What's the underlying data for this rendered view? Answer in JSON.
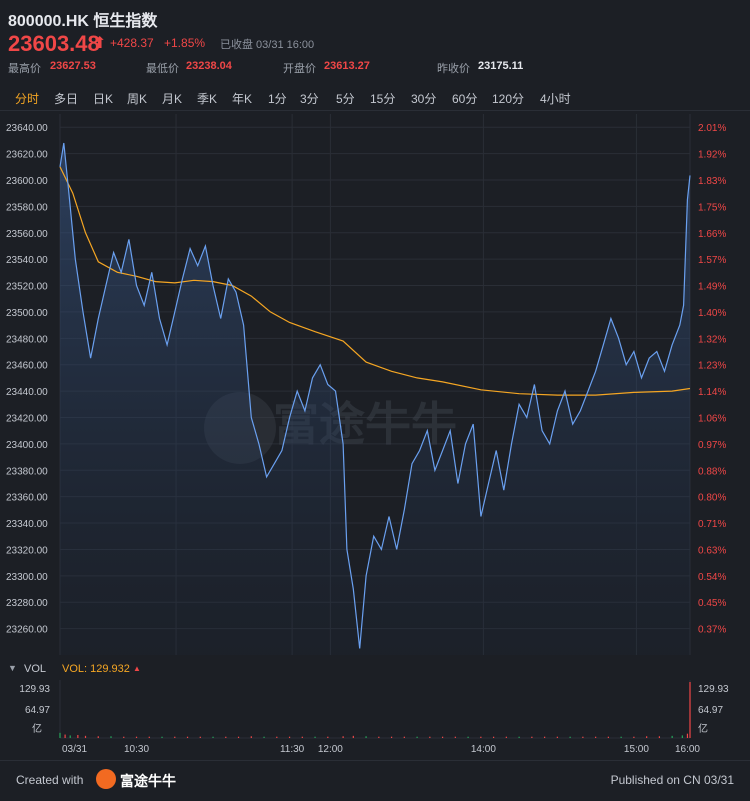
{
  "header": {
    "title": "800000.HK 恒生指数",
    "price": "23603.48",
    "price_arrow": "⬆",
    "change": "+428.37",
    "change_pct": "+1.85%",
    "status": "已收盘 03/31 16:00",
    "stats": [
      {
        "label": "最高价",
        "value": "23627.53",
        "color": "#f04747"
      },
      {
        "label": "最低价",
        "value": "23238.04",
        "color": "#f04747"
      },
      {
        "label": "开盘价",
        "value": "23613.27",
        "color": "#f04747"
      },
      {
        "label": "昨收价",
        "value": "23175.11",
        "color": "#e7e9ee"
      }
    ]
  },
  "tabs": [
    {
      "label": "分时",
      "active": true
    },
    {
      "label": "多日"
    },
    {
      "label": "日K"
    },
    {
      "label": "周K"
    },
    {
      "label": "月K"
    },
    {
      "label": "季K"
    },
    {
      "label": "年K"
    },
    {
      "label": "1分"
    },
    {
      "label": "3分"
    },
    {
      "label": "5分"
    },
    {
      "label": "15分"
    },
    {
      "label": "30分"
    },
    {
      "label": "60分"
    },
    {
      "label": "120分"
    },
    {
      "label": "4小时"
    }
  ],
  "volume": {
    "label": "VOL",
    "value_text": "VOL: 129.932",
    "max_label": "129.93",
    "mid_label": "64.97",
    "unit": "亿"
  },
  "watermark": "富途牛牛",
  "footer": {
    "created": "Created with",
    "brand": "富途牛牛",
    "published": "Published on CN 03/31"
  },
  "colors": {
    "price_line": "#6aa0f0",
    "avg_line": "#f5a623",
    "up": "#f04747",
    "down": "#26a65b",
    "grid": "#2a2e36",
    "background": "#1c1f25"
  },
  "chart_data": {
    "type": "line",
    "x_ticks": [
      "03/31",
      "10:30",
      "11:30",
      "12:00",
      "14:00",
      "15:00",
      "16:00"
    ],
    "y_ticks": [
      23640.0,
      23620.0,
      23600.0,
      23580.0,
      23560.0,
      23540.0,
      23520.0,
      23500.0,
      23480.0,
      23460.0,
      23440.0,
      23420.0,
      23400.0,
      23380.0,
      23360.0,
      23340.0,
      23320.0,
      23300.0,
      23280.0,
      23260.0
    ],
    "y_right_ticks": [
      "2.01%",
      "1.92%",
      "1.83%",
      "1.75%",
      "1.66%",
      "1.57%",
      "1.49%",
      "1.40%",
      "1.32%",
      "1.23%",
      "1.14%",
      "1.06%",
      "0.97%",
      "0.88%",
      "0.80%",
      "0.71%",
      "0.63%",
      "0.54%",
      "0.45%",
      "0.37%"
    ],
    "ylim": [
      23240,
      23650
    ],
    "price_series": [
      {
        "t": 0,
        "v": 23610
      },
      {
        "t": 3,
        "v": 23628
      },
      {
        "t": 7,
        "v": 23590
      },
      {
        "t": 12,
        "v": 23540
      },
      {
        "t": 18,
        "v": 23500
      },
      {
        "t": 24,
        "v": 23465
      },
      {
        "t": 30,
        "v": 23495
      },
      {
        "t": 36,
        "v": 23520
      },
      {
        "t": 42,
        "v": 23545
      },
      {
        "t": 48,
        "v": 23530
      },
      {
        "t": 54,
        "v": 23555
      },
      {
        "t": 60,
        "v": 23520
      },
      {
        "t": 66,
        "v": 23505
      },
      {
        "t": 72,
        "v": 23530
      },
      {
        "t": 78,
        "v": 23495
      },
      {
        "t": 84,
        "v": 23475
      },
      {
        "t": 90,
        "v": 23500
      },
      {
        "t": 96,
        "v": 23525
      },
      {
        "t": 102,
        "v": 23548
      },
      {
        "t": 108,
        "v": 23535
      },
      {
        "t": 114,
        "v": 23550
      },
      {
        "t": 120,
        "v": 23520
      },
      {
        "t": 126,
        "v": 23495
      },
      {
        "t": 132,
        "v": 23525
      },
      {
        "t": 138,
        "v": 23515
      },
      {
        "t": 144,
        "v": 23490
      },
      {
        "t": 150,
        "v": 23420
      },
      {
        "t": 156,
        "v": 23400
      },
      {
        "t": 162,
        "v": 23375
      },
      {
        "t": 168,
        "v": 23385
      },
      {
        "t": 174,
        "v": 23395
      },
      {
        "t": 180,
        "v": 23420
      },
      {
        "t": 186,
        "v": 23440
      },
      {
        "t": 192,
        "v": 23425
      },
      {
        "t": 198,
        "v": 23450
      },
      {
        "t": 204,
        "v": 23460
      },
      {
        "t": 210,
        "v": 23445
      },
      {
        "t": 216,
        "v": 23440
      },
      {
        "t": 222,
        "v": 23400
      },
      {
        "t": 225,
        "v": 23320
      },
      {
        "t": 230,
        "v": 23290
      },
      {
        "t": 235,
        "v": 23245
      },
      {
        "t": 240,
        "v": 23300
      },
      {
        "t": 246,
        "v": 23330
      },
      {
        "t": 252,
        "v": 23320
      },
      {
        "t": 258,
        "v": 23345
      },
      {
        "t": 264,
        "v": 23320
      },
      {
        "t": 270,
        "v": 23350
      },
      {
        "t": 276,
        "v": 23385
      },
      {
        "t": 282,
        "v": 23395
      },
      {
        "t": 288,
        "v": 23410
      },
      {
        "t": 294,
        "v": 23380
      },
      {
        "t": 300,
        "v": 23395
      },
      {
        "t": 306,
        "v": 23410
      },
      {
        "t": 312,
        "v": 23370
      },
      {
        "t": 318,
        "v": 23400
      },
      {
        "t": 324,
        "v": 23415
      },
      {
        "t": 330,
        "v": 23345
      },
      {
        "t": 336,
        "v": 23370
      },
      {
        "t": 342,
        "v": 23395
      },
      {
        "t": 348,
        "v": 23365
      },
      {
        "t": 354,
        "v": 23400
      },
      {
        "t": 360,
        "v": 23430
      },
      {
        "t": 366,
        "v": 23420
      },
      {
        "t": 372,
        "v": 23445
      },
      {
        "t": 378,
        "v": 23410
      },
      {
        "t": 384,
        "v": 23400
      },
      {
        "t": 390,
        "v": 23425
      },
      {
        "t": 396,
        "v": 23440
      },
      {
        "t": 402,
        "v": 23415
      },
      {
        "t": 408,
        "v": 23425
      },
      {
        "t": 414,
        "v": 23440
      },
      {
        "t": 420,
        "v": 23455
      },
      {
        "t": 426,
        "v": 23475
      },
      {
        "t": 432,
        "v": 23495
      },
      {
        "t": 438,
        "v": 23480
      },
      {
        "t": 444,
        "v": 23460
      },
      {
        "t": 450,
        "v": 23470
      },
      {
        "t": 456,
        "v": 23450
      },
      {
        "t": 462,
        "v": 23465
      },
      {
        "t": 468,
        "v": 23470
      },
      {
        "t": 474,
        "v": 23455
      },
      {
        "t": 480,
        "v": 23475
      },
      {
        "t": 486,
        "v": 23490
      },
      {
        "t": 489,
        "v": 23505
      },
      {
        "t": 492,
        "v": 23585
      },
      {
        "t": 494,
        "v": 23603.48
      }
    ],
    "avg_series": [
      {
        "t": 0,
        "v": 23610
      },
      {
        "t": 10,
        "v": 23590
      },
      {
        "t": 20,
        "v": 23560
      },
      {
        "t": 30,
        "v": 23538
      },
      {
        "t": 45,
        "v": 23530
      },
      {
        "t": 60,
        "v": 23527
      },
      {
        "t": 75,
        "v": 23523
      },
      {
        "t": 90,
        "v": 23522
      },
      {
        "t": 105,
        "v": 23524
      },
      {
        "t": 120,
        "v": 23523
      },
      {
        "t": 135,
        "v": 23520
      },
      {
        "t": 150,
        "v": 23512
      },
      {
        "t": 165,
        "v": 23500
      },
      {
        "t": 180,
        "v": 23492
      },
      {
        "t": 200,
        "v": 23485
      },
      {
        "t": 222,
        "v": 23478
      },
      {
        "t": 240,
        "v": 23462
      },
      {
        "t": 260,
        "v": 23455
      },
      {
        "t": 280,
        "v": 23450
      },
      {
        "t": 300,
        "v": 23447
      },
      {
        "t": 330,
        "v": 23441
      },
      {
        "t": 360,
        "v": 23438
      },
      {
        "t": 390,
        "v": 23437
      },
      {
        "t": 420,
        "v": 23437
      },
      {
        "t": 450,
        "v": 23439
      },
      {
        "t": 480,
        "v": 23440
      },
      {
        "t": 494,
        "v": 23442
      }
    ],
    "volume_bars": [
      {
        "t": 0,
        "v": 12
      },
      {
        "t": 4,
        "v": 8
      },
      {
        "t": 8,
        "v": 6
      },
      {
        "t": 14,
        "v": 7
      },
      {
        "t": 20,
        "v": 5
      },
      {
        "t": 30,
        "v": 4
      },
      {
        "t": 40,
        "v": 4
      },
      {
        "t": 50,
        "v": 3
      },
      {
        "t": 60,
        "v": 3
      },
      {
        "t": 70,
        "v": 3
      },
      {
        "t": 80,
        "v": 3
      },
      {
        "t": 90,
        "v": 3
      },
      {
        "t": 100,
        "v": 3
      },
      {
        "t": 110,
        "v": 3
      },
      {
        "t": 120,
        "v": 3
      },
      {
        "t": 130,
        "v": 3
      },
      {
        "t": 140,
        "v": 3
      },
      {
        "t": 150,
        "v": 4
      },
      {
        "t": 160,
        "v": 3
      },
      {
        "t": 170,
        "v": 3
      },
      {
        "t": 180,
        "v": 3
      },
      {
        "t": 190,
        "v": 3
      },
      {
        "t": 200,
        "v": 3
      },
      {
        "t": 210,
        "v": 3
      },
      {
        "t": 222,
        "v": 4
      },
      {
        "t": 230,
        "v": 5
      },
      {
        "t": 240,
        "v": 4
      },
      {
        "t": 250,
        "v": 3
      },
      {
        "t": 260,
        "v": 3
      },
      {
        "t": 270,
        "v": 3
      },
      {
        "t": 280,
        "v": 3
      },
      {
        "t": 290,
        "v": 3
      },
      {
        "t": 300,
        "v": 3
      },
      {
        "t": 310,
        "v": 3
      },
      {
        "t": 320,
        "v": 3
      },
      {
        "t": 330,
        "v": 3
      },
      {
        "t": 340,
        "v": 3
      },
      {
        "t": 350,
        "v": 3
      },
      {
        "t": 360,
        "v": 3
      },
      {
        "t": 370,
        "v": 3
      },
      {
        "t": 380,
        "v": 3
      },
      {
        "t": 390,
        "v": 3
      },
      {
        "t": 400,
        "v": 3
      },
      {
        "t": 410,
        "v": 3
      },
      {
        "t": 420,
        "v": 3
      },
      {
        "t": 430,
        "v": 3
      },
      {
        "t": 440,
        "v": 3
      },
      {
        "t": 450,
        "v": 3
      },
      {
        "t": 460,
        "v": 4
      },
      {
        "t": 470,
        "v": 4
      },
      {
        "t": 480,
        "v": 5
      },
      {
        "t": 488,
        "v": 6
      },
      {
        "t": 492,
        "v": 10
      },
      {
        "t": 494,
        "v": 129.932
      }
    ]
  }
}
